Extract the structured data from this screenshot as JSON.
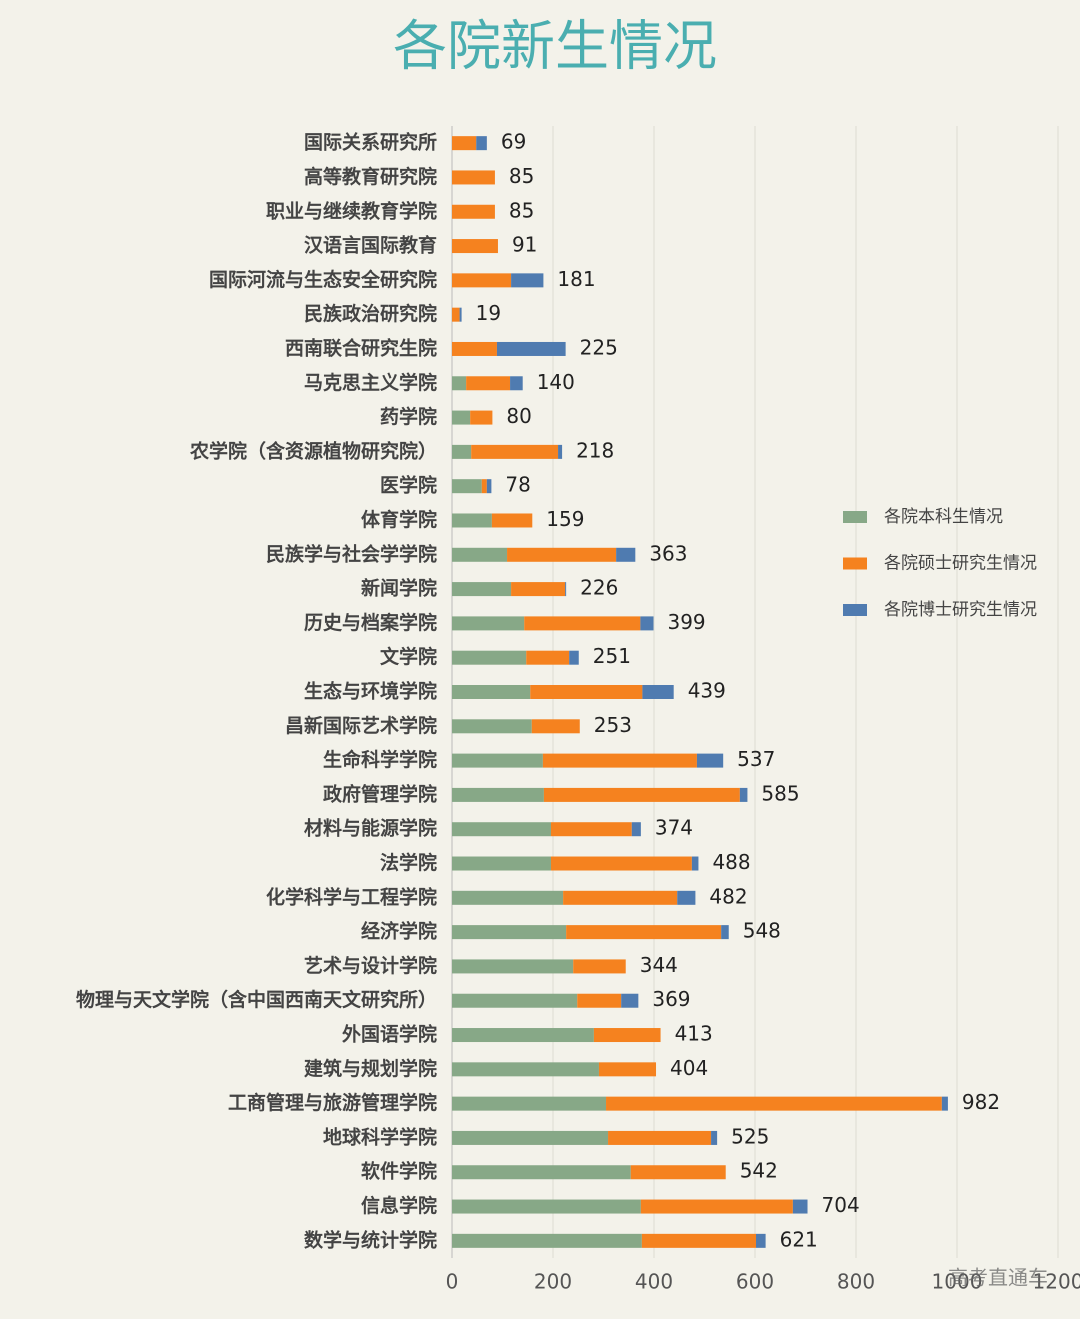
{
  "chart_data": {
    "type": "bar",
    "orientation": "horizontal",
    "stacked": true,
    "title": "各院新生情况",
    "categories": [
      "国际关系研究所",
      "高等教育研究院",
      "职业与继续教育学院",
      "汉语言国际教育",
      "国际河流与生态安全研究院",
      "民族政治研究院",
      "西南联合研究生院",
      "马克思主义学院",
      "药学院",
      "农学院（含资源植物研究院）",
      "医学院",
      "体育学院",
      "民族学与社会学学院",
      "新闻学院",
      "历史与档案学院",
      "文学院",
      "生态与环境学院",
      "昌新国际艺术学院",
      "生命科学学院",
      "政府管理学院",
      "材料与能源学院",
      "法学院",
      "化学科学与工程学院",
      "经济学院",
      "艺术与设计学院",
      "物理与天文学院（含中国西南天文研究所）",
      "外国语学院",
      "建筑与规划学院",
      "工商管理与旅游管理学院",
      "地球科学学院",
      "软件学院",
      "信息学院",
      "数学与统计学院"
    ],
    "series": [
      {
        "name": "各院本科生情况",
        "color": "#87a887",
        "values": [
          0,
          0,
          0,
          0,
          0,
          0,
          0,
          28,
          36,
          38,
          59,
          79,
          109,
          117,
          143,
          147,
          155,
          158,
          180,
          182,
          196,
          196,
          220,
          226,
          240,
          248,
          281,
          291,
          305,
          309,
          354,
          374,
          376
        ]
      },
      {
        "name": "各院硕士研究生情况",
        "color": "#f5821f",
        "values": [
          48,
          85,
          85,
          91,
          117,
          15,
          89,
          87,
          44,
          172,
          10,
          80,
          216,
          107,
          230,
          85,
          222,
          95,
          305,
          388,
          160,
          279,
          226,
          307,
          104,
          87,
          132,
          113,
          665,
          204,
          188,
          301,
          226
        ]
      },
      {
        "name": "各院博士研究生情况",
        "color": "#4f7bb0",
        "values": [
          21,
          0,
          0,
          0,
          64,
          4,
          136,
          25,
          0,
          8,
          9,
          0,
          38,
          2,
          26,
          19,
          62,
          0,
          52,
          15,
          18,
          13,
          36,
          15,
          0,
          34,
          0,
          0,
          12,
          12,
          0,
          29,
          19
        ]
      }
    ],
    "totals": [
      69,
      85,
      85,
      91,
      181,
      19,
      225,
      140,
      80,
      218,
      78,
      159,
      363,
      226,
      399,
      251,
      439,
      253,
      537,
      585,
      374,
      488,
      482,
      548,
      344,
      369,
      413,
      404,
      982,
      525,
      542,
      704,
      621
    ],
    "xlim": [
      0,
      1200
    ],
    "xticks": [
      0,
      200,
      400,
      600,
      800,
      1000,
      1200
    ],
    "grid": true,
    "legend": "right",
    "watermark": "高考直通车"
  }
}
